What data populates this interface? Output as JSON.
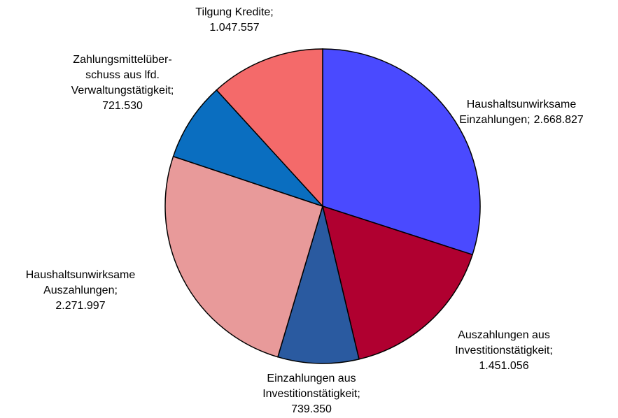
{
  "chart_data": {
    "type": "pie",
    "categories": [
      "Haushaltsunwirksame\nEinzahlungen;",
      "Auszahlungen aus\nInvestitionstätigkeit;",
      "Einzahlungen aus\nInvestitionstätigkeit;",
      "Haushaltsunwirksame\nAuszahlungen;",
      "Zahlungsmittelüber-\nschuss aus lfd.\nVerwaltungstätigkeit;",
      "Tilgung Kredite;"
    ],
    "values": [
      2668827,
      1451056,
      739350,
      2271997,
      721530,
      1047557
    ],
    "value_labels": [
      "2.668.827",
      "1.451.056",
      "739.350",
      "2.271.997",
      "721.530",
      "1.047.557"
    ],
    "colors": [
      "#4a4aff",
      "#b00030",
      "#2a5aa0",
      "#e89a9a",
      "#0a6ec0",
      "#f46a6a"
    ]
  }
}
